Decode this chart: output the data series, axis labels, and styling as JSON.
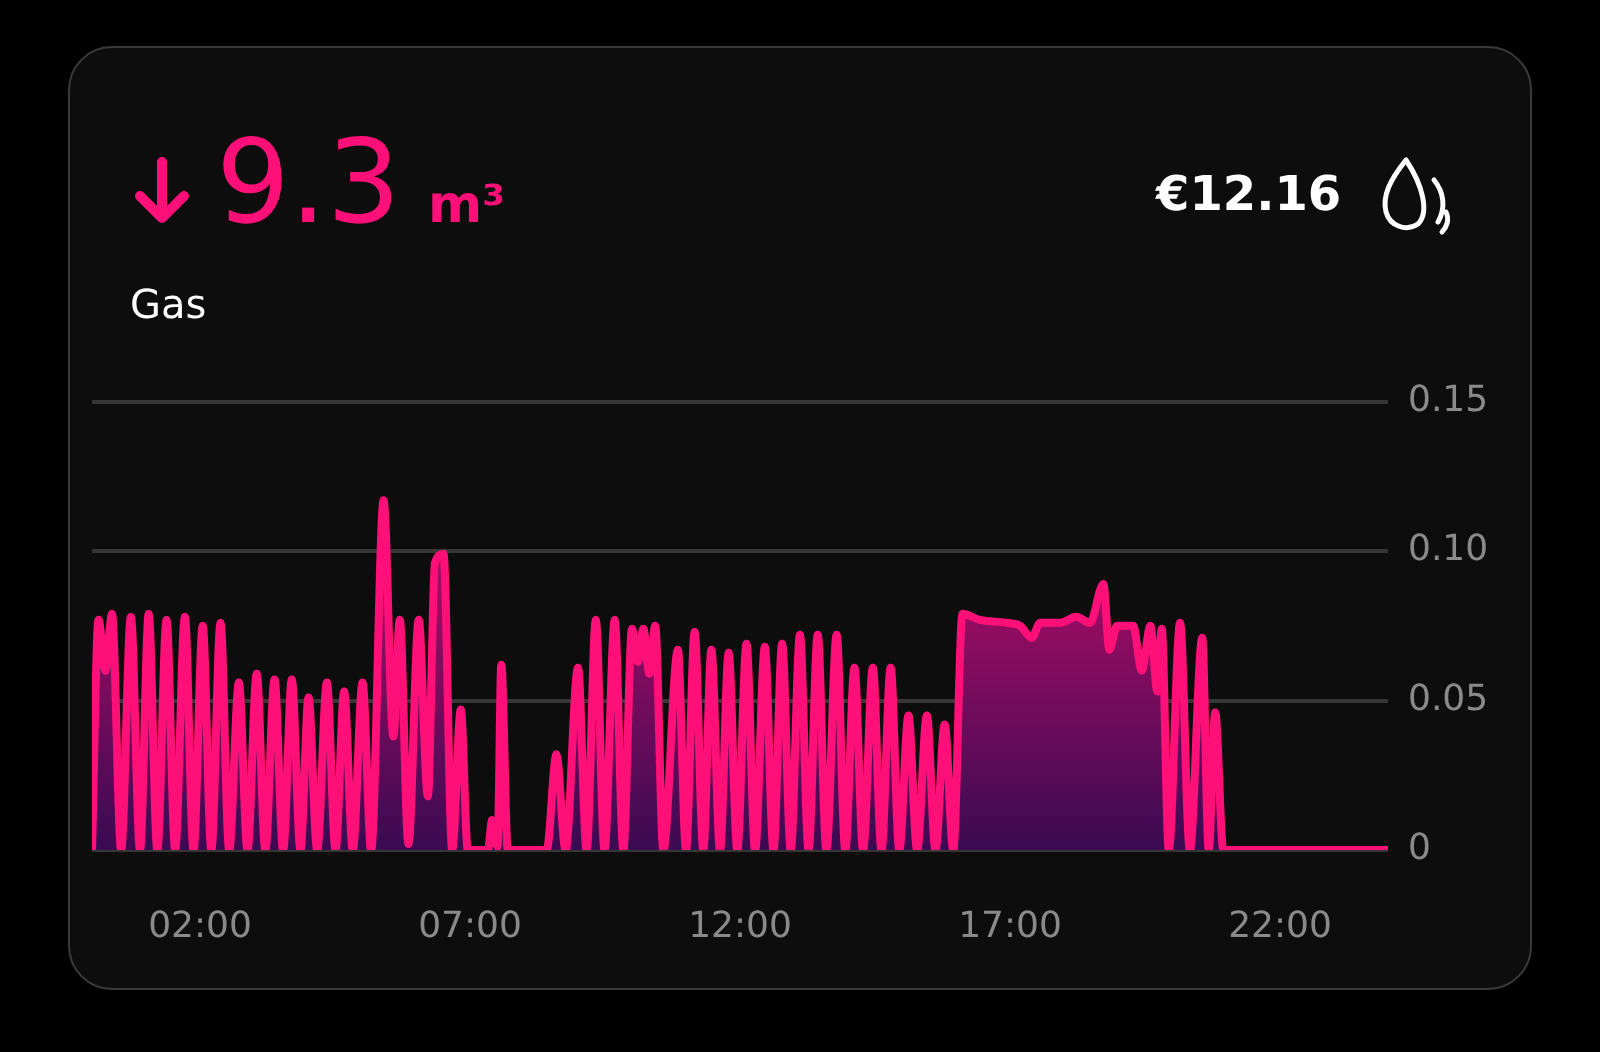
{
  "chart_data": {
    "type": "area",
    "title": "Gas",
    "annotations": [
      "9.3",
      "m³",
      "€12.16"
    ],
    "x": [
      0,
      0.12,
      0.25,
      0.37,
      0.54,
      0.72,
      0.89,
      1.05,
      1.21,
      1.38,
      1.54,
      1.72,
      1.88,
      2.05,
      2.21,
      2.38,
      2.54,
      2.72,
      2.88,
      3.05,
      3.21,
      3.38,
      3.54,
      3.7,
      3.86,
      4.01,
      4.17,
      4.35,
      4.51,
      4.67,
      4.83,
      5.01,
      5.17,
      5.4,
      5.58,
      5.7,
      5.86,
      6.05,
      6.22,
      6.35,
      6.51,
      6.67,
      6.83,
      6.96,
      7.33,
      7.41,
      7.51,
      7.58,
      7.7,
      8.42,
      8.6,
      8.77,
      9.0,
      9.16,
      9.33,
      9.49,
      9.68,
      9.84,
      10.0,
      10.11,
      10.21,
      10.32,
      10.43,
      10.58,
      10.85,
      11.0,
      11.16,
      11.32,
      11.47,
      11.63,
      11.79,
      11.95,
      12.12,
      12.28,
      12.46,
      12.62,
      12.78,
      12.94,
      13.11,
      13.27,
      13.44,
      13.6,
      13.79,
      13.95,
      14.12,
      14.28,
      14.46,
      14.62,
      14.79,
      14.95,
      15.12,
      15.28,
      15.46,
      15.62,
      15.79,
      15.95,
      16.12,
      16.44,
      16.94,
      17.19,
      17.4,
      17.56,
      17.93,
      18.23,
      18.48,
      18.73,
      18.84,
      18.98,
      19.28,
      19.44,
      19.6,
      19.73,
      19.81,
      19.94,
      20.15,
      20.33,
      20.56,
      20.68,
      20.8,
      20.95,
      24
    ],
    "values": [
      0,
      0.077,
      0.06,
      0.079,
      0,
      0.078,
      0,
      0.079,
      0,
      0.077,
      0,
      0.078,
      0,
      0.075,
      0,
      0.076,
      0,
      0.056,
      0,
      0.059,
      0,
      0.057,
      0,
      0.057,
      0,
      0.051,
      0,
      0.056,
      0,
      0.053,
      0,
      0.056,
      0,
      0.117,
      0.038,
      0.077,
      0.002,
      0.077,
      0.018,
      0.096,
      0.099,
      0,
      0.047,
      0,
      0,
      0.01,
      0.001,
      0.062,
      0,
      0,
      0.032,
      0,
      0.061,
      0,
      0.077,
      0,
      0.077,
      0,
      0.074,
      0.063,
      0.074,
      0.059,
      0.075,
      0,
      0.067,
      0,
      0.073,
      0,
      0.067,
      0,
      0.066,
      0,
      0.069,
      0,
      0.068,
      0,
      0.069,
      0,
      0.072,
      0,
      0.072,
      0,
      0.072,
      0,
      0.061,
      0,
      0.061,
      0,
      0.061,
      0,
      0.045,
      0,
      0.045,
      0,
      0.042,
      0,
      0.079,
      0.077,
      0.076,
      0.075,
      0.071,
      0.076,
      0.076,
      0.078,
      0.076,
      0.089,
      0.067,
      0.075,
      0.075,
      0.06,
      0.075,
      0.053,
      0.074,
      0,
      0.076,
      0,
      0.071,
      0,
      0.046,
      0,
      0
    ],
    "color": "#ff0f78",
    "marker": "none",
    "line_style": "solid",
    "xlim": [
      0,
      24
    ],
    "xticks": [
      {
        "value": 2,
        "label": "02:00"
      },
      {
        "value": 7,
        "label": "07:00"
      },
      {
        "value": 12,
        "label": "12:00"
      },
      {
        "value": 17,
        "label": "17:00"
      },
      {
        "value": 22,
        "label": "22:00"
      }
    ],
    "ylim": [
      0,
      0.15
    ],
    "yticks": [
      0,
      0.05,
      {
        "value": 0.1,
        "label": "0.10"
      },
      0.15
    ],
    "grid": "y"
  }
}
